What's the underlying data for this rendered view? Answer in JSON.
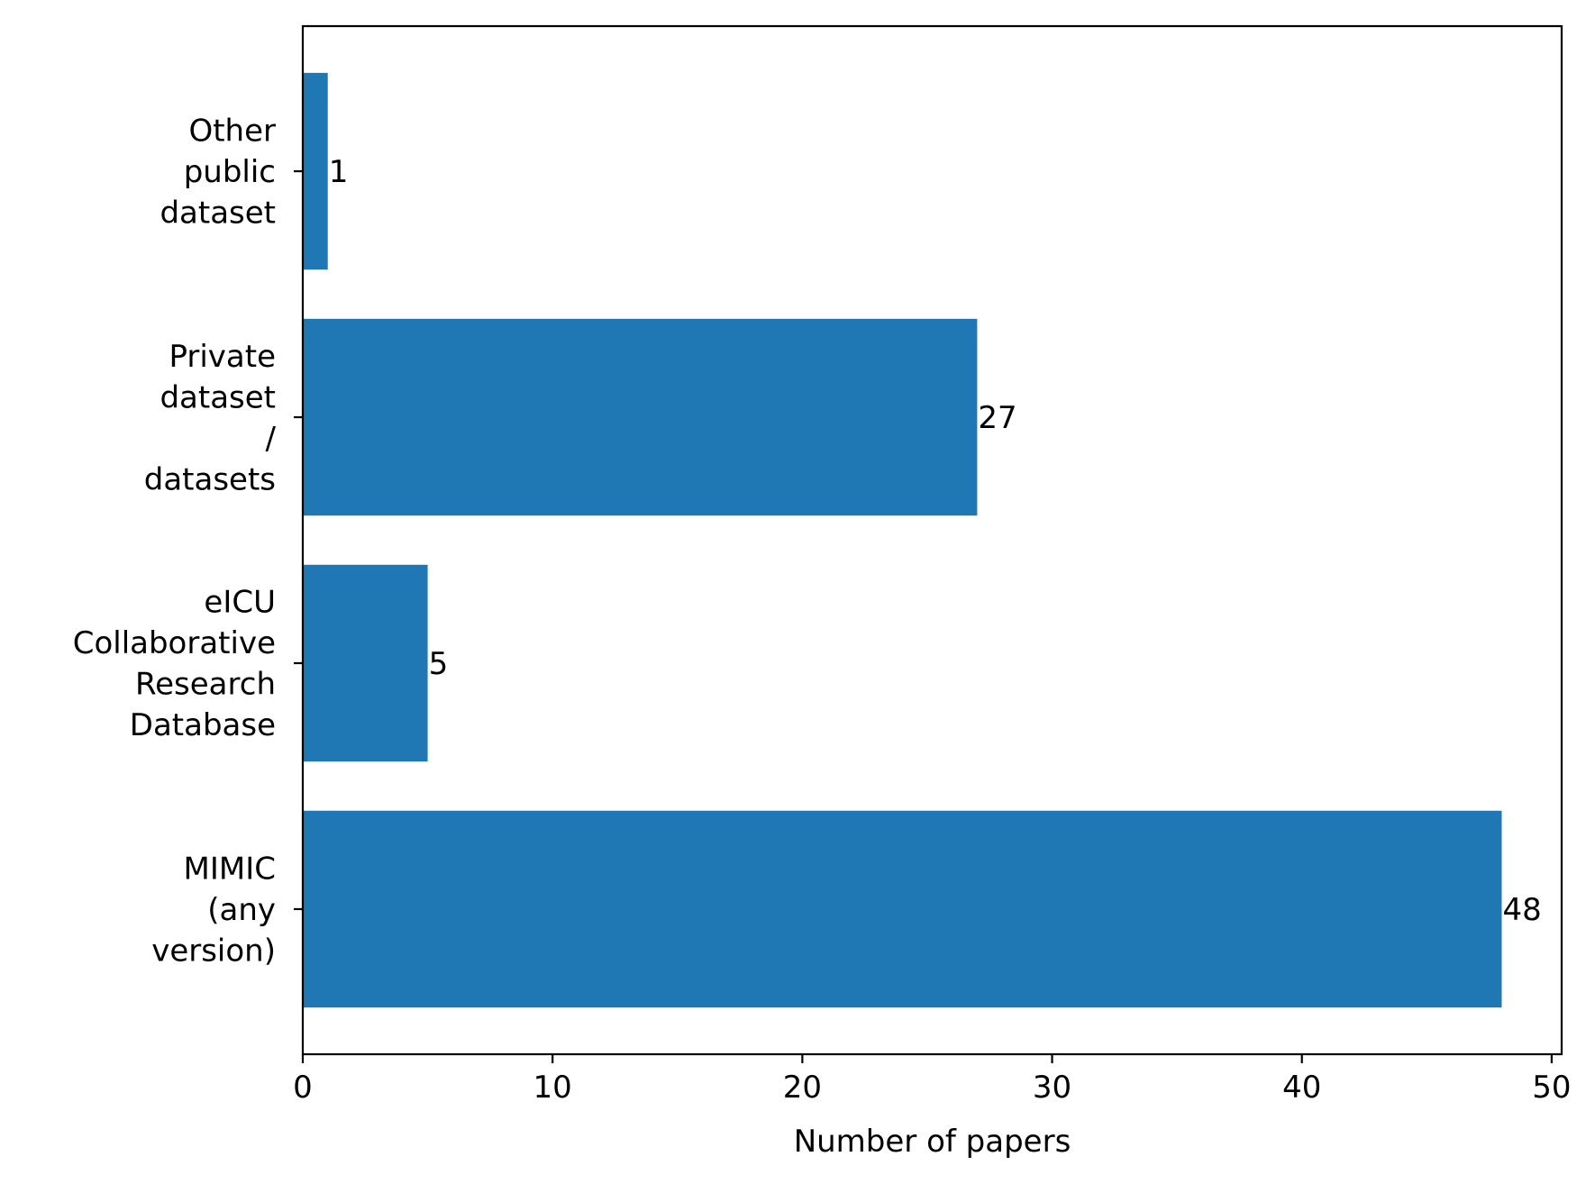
{
  "chart_data": {
    "type": "bar",
    "orientation": "horizontal",
    "categories": [
      [
        "MIMIC",
        "(any",
        "version)"
      ],
      [
        "eICU",
        "Collaborative",
        "Research",
        "Database"
      ],
      [
        "Private",
        "dataset",
        "/",
        "datasets"
      ],
      [
        "Other",
        "public",
        "dataset"
      ]
    ],
    "values": [
      48,
      5,
      27,
      1
    ],
    "value_labels": [
      "48",
      "5",
      "27",
      "1"
    ],
    "title": "",
    "xlabel": "Number of papers",
    "ylabel": "",
    "xlim": [
      0,
      50.4
    ],
    "xticks": [
      0,
      10,
      20,
      30,
      40,
      50
    ],
    "grid": false,
    "bar_color": "#1f77b4"
  }
}
